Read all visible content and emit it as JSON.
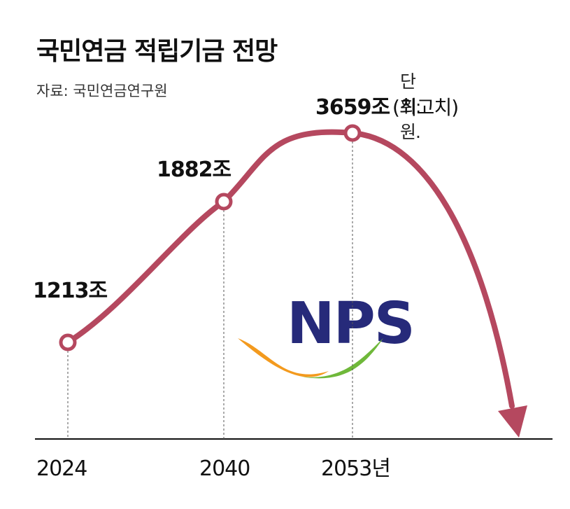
{
  "header": {
    "title": "국민연금 적립기금 전망",
    "unit": "단위: 원.",
    "source": "자료: 국민연금연구원"
  },
  "logo": {
    "text": "NPS",
    "colors": {
      "letters": "#262a7a",
      "swoosh_orange": "#f39a1e",
      "swoosh_green": "#6fb83a"
    }
  },
  "colors": {
    "curve": "#b5485f",
    "marker_fill": "#ffffff",
    "axis": "#111111",
    "guide": "#555555"
  },
  "chart_data": {
    "type": "line",
    "x": [
      2024,
      2040,
      2053
    ],
    "values": [
      1213,
      1882,
      3659
    ],
    "point_labels": [
      "1213조",
      "1882조",
      "3659조"
    ],
    "peak_note": "(최고치)",
    "xtick_labels": [
      "2024",
      "2040",
      "2053년"
    ],
    "trend_after_peak": "steep decline (arrow)",
    "title": "국민연금 적립기금 전망",
    "xlabel": "",
    "ylabel": "",
    "grid": false
  }
}
